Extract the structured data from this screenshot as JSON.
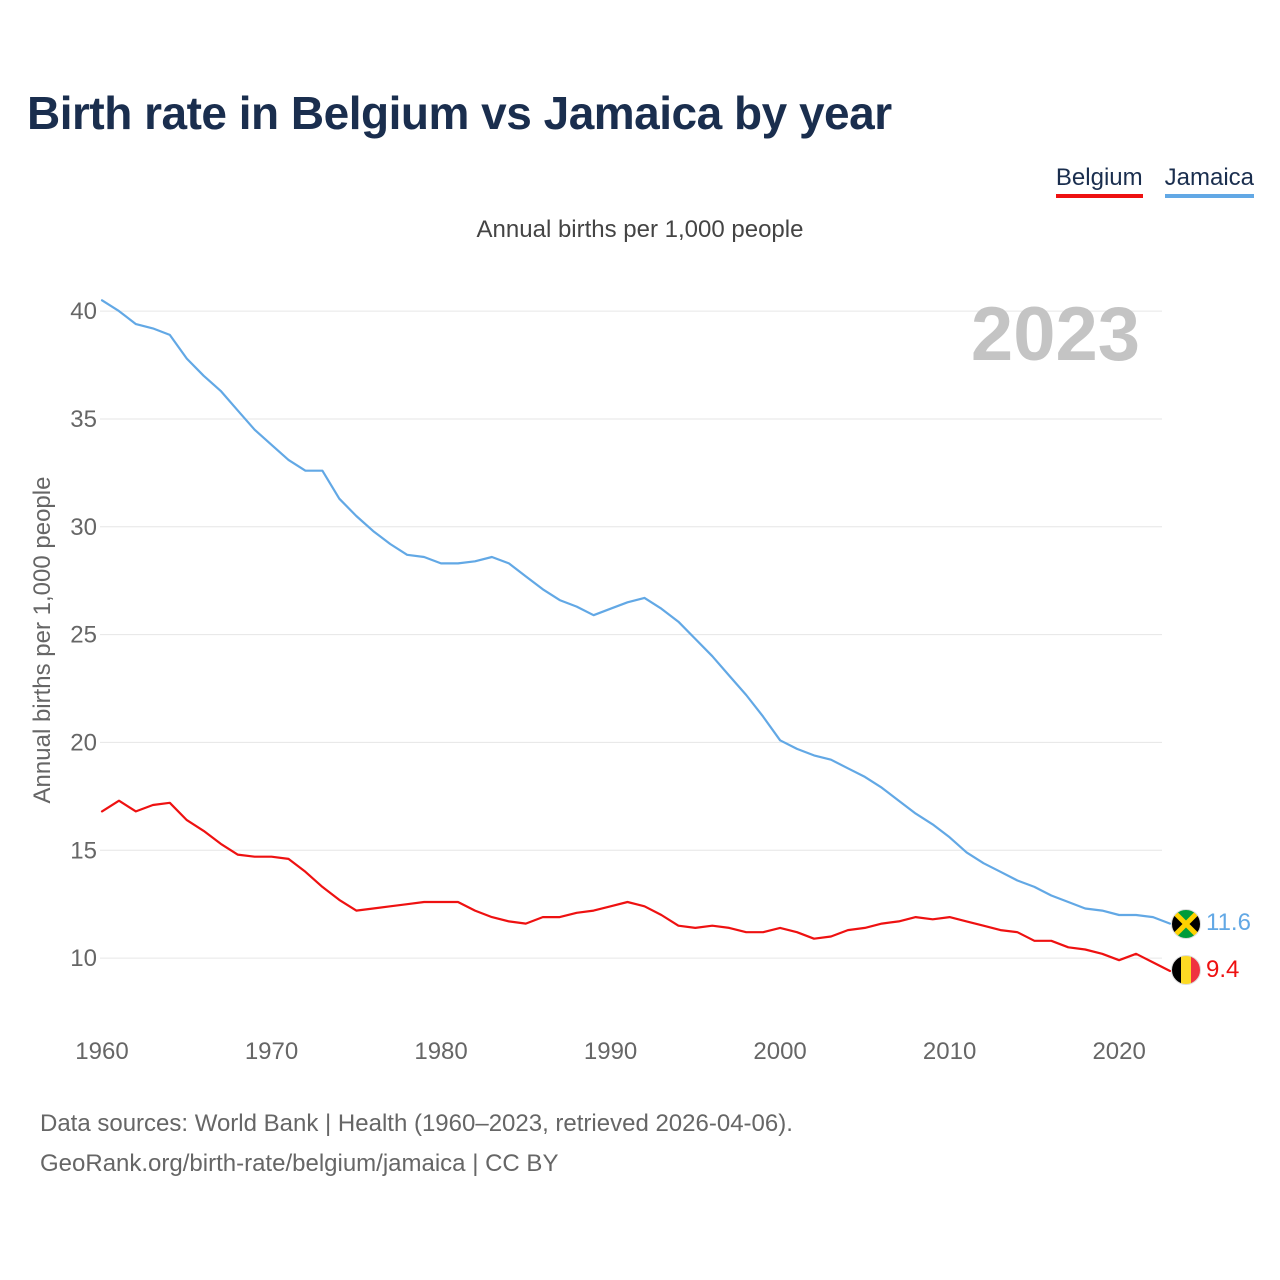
{
  "title": "Birth rate in Belgium vs Jamaica by year",
  "subtitle": "Annual births per 1,000 people",
  "source_line1": "Data sources: World Bank | Health (1960–2023, retrieved 2026-04-06).",
  "source_line2": "GeoRank.org/birth-rate/belgium/jamaica | CC BY",
  "legend": [
    {
      "label": "Belgium",
      "color": "#ee1111"
    },
    {
      "label": "Jamaica",
      "color": "#62a8e5"
    }
  ],
  "chart_data": {
    "type": "line",
    "title": "Birth rate in Belgium vs Jamaica by year",
    "ylabel": "Annual births per 1,000 people",
    "xlabel": "",
    "xlim": [
      1960,
      2023
    ],
    "ylim": [
      7.5,
      42
    ],
    "x_ticks": [
      1960,
      1970,
      1980,
      1990,
      2000,
      2010,
      2020
    ],
    "y_ticks": [
      10,
      15,
      20,
      25,
      30,
      35,
      40
    ],
    "grid": true,
    "year_label": "2023",
    "series": [
      {
        "name": "Belgium",
        "color": "#ee1111",
        "flag": "belgium-flag",
        "end_label": "9.4",
        "x": [
          1960,
          1961,
          1962,
          1963,
          1964,
          1965,
          1966,
          1967,
          1968,
          1969,
          1970,
          1971,
          1972,
          1973,
          1974,
          1975,
          1976,
          1977,
          1978,
          1979,
          1980,
          1981,
          1982,
          1983,
          1984,
          1985,
          1986,
          1987,
          1988,
          1989,
          1990,
          1991,
          1992,
          1993,
          1994,
          1995,
          1996,
          1997,
          1998,
          1999,
          2000,
          2001,
          2002,
          2003,
          2004,
          2005,
          2006,
          2007,
          2008,
          2009,
          2010,
          2011,
          2012,
          2013,
          2014,
          2015,
          2016,
          2017,
          2018,
          2019,
          2020,
          2021,
          2022,
          2023
        ],
        "values": [
          16.8,
          17.3,
          16.8,
          17.1,
          17.2,
          16.4,
          15.9,
          15.3,
          14.8,
          14.7,
          14.7,
          14.6,
          14.0,
          13.3,
          12.7,
          12.2,
          12.3,
          12.4,
          12.5,
          12.6,
          12.6,
          12.6,
          12.2,
          11.9,
          11.7,
          11.6,
          11.9,
          11.9,
          12.1,
          12.2,
          12.4,
          12.6,
          12.4,
          12.0,
          11.5,
          11.4,
          11.5,
          11.4,
          11.2,
          11.2,
          11.4,
          11.2,
          10.9,
          11.0,
          11.3,
          11.4,
          11.6,
          11.7,
          11.9,
          11.8,
          11.9,
          11.7,
          11.5,
          11.3,
          11.2,
          10.8,
          10.8,
          10.5,
          10.4,
          10.2,
          9.9,
          10.2,
          9.8,
          9.4
        ]
      },
      {
        "name": "Jamaica",
        "color": "#62a8e5",
        "flag": "jamaica-flag",
        "end_label": "11.6",
        "x": [
          1960,
          1961,
          1962,
          1963,
          1964,
          1965,
          1966,
          1967,
          1968,
          1969,
          1970,
          1971,
          1972,
          1973,
          1974,
          1975,
          1976,
          1977,
          1978,
          1979,
          1980,
          1981,
          1982,
          1983,
          1984,
          1985,
          1986,
          1987,
          1988,
          1989,
          1990,
          1991,
          1992,
          1993,
          1994,
          1995,
          1996,
          1997,
          1998,
          1999,
          2000,
          2001,
          2002,
          2003,
          2004,
          2005,
          2006,
          2007,
          2008,
          2009,
          2010,
          2011,
          2012,
          2013,
          2014,
          2015,
          2016,
          2017,
          2018,
          2019,
          2020,
          2021,
          2022,
          2023
        ],
        "values": [
          40.5,
          40.0,
          39.4,
          39.2,
          38.9,
          37.8,
          37.0,
          36.3,
          35.4,
          34.5,
          33.8,
          33.1,
          32.6,
          32.6,
          31.3,
          30.5,
          29.8,
          29.2,
          28.7,
          28.6,
          28.3,
          28.3,
          28.4,
          28.6,
          28.3,
          27.7,
          27.1,
          26.6,
          26.3,
          25.9,
          26.2,
          26.5,
          26.7,
          26.2,
          25.6,
          24.8,
          24.0,
          23.1,
          22.2,
          21.2,
          20.1,
          19.7,
          19.4,
          19.2,
          18.8,
          18.4,
          17.9,
          17.3,
          16.7,
          16.2,
          15.6,
          14.9,
          14.4,
          14.0,
          13.6,
          13.3,
          12.9,
          12.6,
          12.3,
          12.2,
          12.0,
          12.0,
          11.9,
          11.6
        ]
      }
    ]
  }
}
